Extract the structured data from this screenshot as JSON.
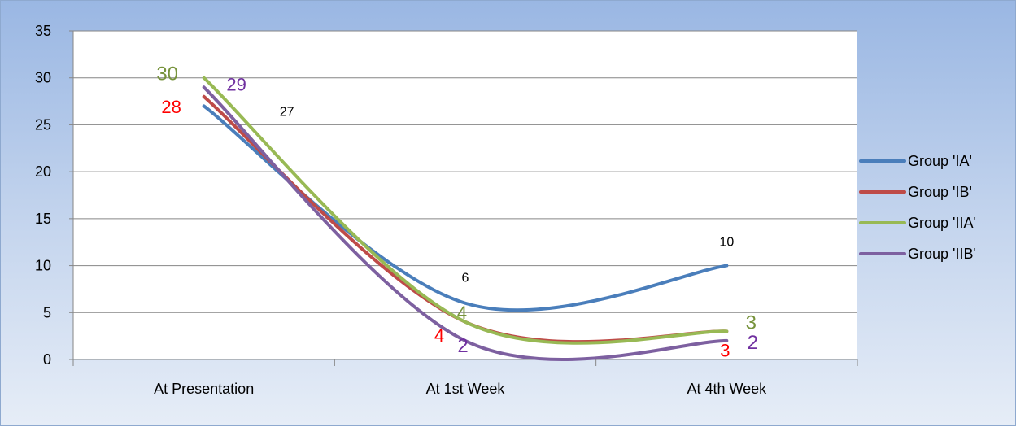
{
  "chart_data": {
    "type": "line",
    "title": "",
    "xlabel": "",
    "ylabel": "",
    "categories": [
      "At Presentation",
      "At 1st Week",
      "At 4th Week"
    ],
    "ylim": [
      0,
      35
    ],
    "yticks": [
      0,
      5,
      10,
      15,
      20,
      25,
      30,
      35
    ],
    "grid": true,
    "smooth": true,
    "legend_position": "right",
    "series": [
      {
        "name": "Group 'IA'",
        "color": "#4a7ebb",
        "values": [
          27,
          6,
          10
        ],
        "label_color": "#000000"
      },
      {
        "name": "Group 'IB'",
        "color": "#be4b48",
        "values": [
          28,
          4,
          3
        ],
        "label_color": "#ff0000"
      },
      {
        "name": "Group 'IIA'",
        "color": "#98b954",
        "values": [
          30,
          4,
          3
        ],
        "label_color": "#77933c"
      },
      {
        "name": "Group 'IIB'",
        "color": "#7d60a0",
        "values": [
          29,
          2,
          2
        ],
        "label_color": "#7030a0"
      }
    ],
    "data_labels": [
      {
        "series": 0,
        "point": 0,
        "text": "27"
      },
      {
        "series": 0,
        "point": 1,
        "text": "6"
      },
      {
        "series": 0,
        "point": 2,
        "text": "10"
      },
      {
        "series": 1,
        "point": 0,
        "text": "28"
      },
      {
        "series": 1,
        "point": 1,
        "text": "4"
      },
      {
        "series": 1,
        "point": 2,
        "text": "3"
      },
      {
        "series": 2,
        "point": 0,
        "text": "30"
      },
      {
        "series": 2,
        "point": 1,
        "text": "4"
      },
      {
        "series": 2,
        "point": 2,
        "text": "3"
      },
      {
        "series": 3,
        "point": 0,
        "text": "29"
      },
      {
        "series": 3,
        "point": 1,
        "text": "2"
      },
      {
        "series": 3,
        "point": 2,
        "text": "2"
      }
    ]
  }
}
